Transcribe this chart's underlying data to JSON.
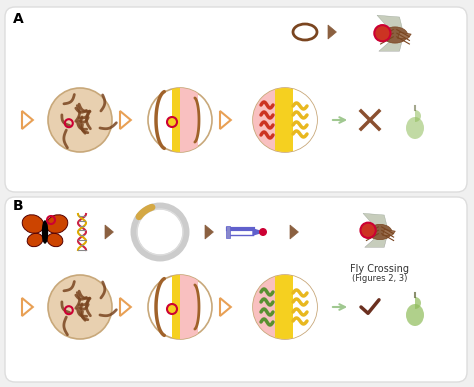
{
  "fig_width": 4.74,
  "fig_height": 3.87,
  "bg_color": "#f0f0f0",
  "panel_bg": "#ffffff",
  "panel_a_label": "A",
  "panel_b_label": "B",
  "arrow_color": "#e8a055",
  "arrow_color_dark": "#8b6040",
  "pink_color": "#f9c0c0",
  "yellow_color": "#f5d020",
  "dark_brown": "#7a4520",
  "medium_brown": "#a0622a",
  "light_brown": "#d4a070",
  "tan_color": "#e8d0b0",
  "circle_border": "#c8a87a",
  "crimson": "#cc0033",
  "green_color": "#8fbc5a",
  "fly_body": "#8b6040",
  "or_yellow": "#e8b820",
  "orco_color": "#cc3322",
  "orco_green": "#5a9030",
  "butterfly_orange": "#cc4400",
  "butterfly_dark": "#550000",
  "dna_red": "#cc2244",
  "dna_yellow": "#ddaa00",
  "plasmid_border": "#d4a844",
  "needle_blue": "#6060cc",
  "text_color": "#333333",
  "small_fontsize": 7
}
